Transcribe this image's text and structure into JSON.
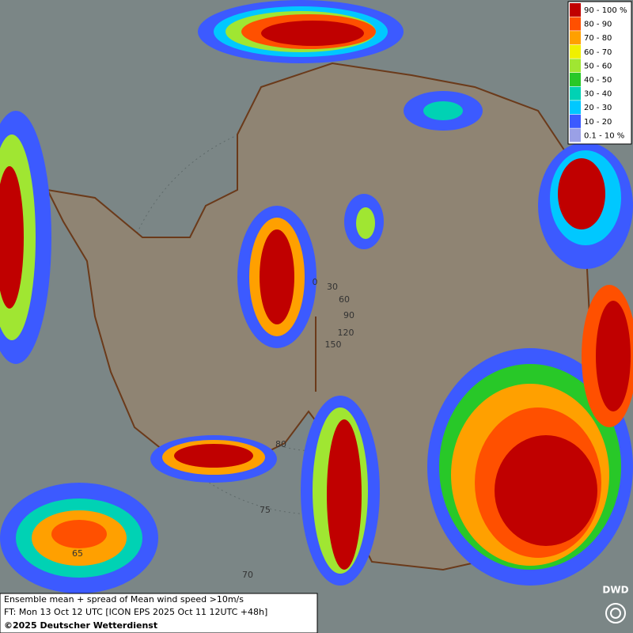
{
  "legend": [
    {
      "label": "90 - 100 %",
      "color": "#c00000"
    },
    {
      "label": "80 - 90",
      "color": "#ff5000"
    },
    {
      "label": "70 - 80",
      "color": "#ffa000"
    },
    {
      "label": "60 - 70",
      "color": "#f0f000"
    },
    {
      "label": "50 - 60",
      "color": "#a0e632"
    },
    {
      "label": "40 - 50",
      "color": "#28c828"
    },
    {
      "label": "30 - 40",
      "color": "#00d2b4"
    },
    {
      "label": "20 - 30",
      "color": "#00c8ff"
    },
    {
      "label": "10 - 20",
      "color": "#3c5aff"
    },
    {
      "label": "0.1 - 10 %",
      "color": "#9aa0e6"
    }
  ],
  "map_labels": [
    "0",
    "30",
    "60",
    "90",
    "120",
    "150",
    "80",
    "75",
    "70",
    "65"
  ],
  "footer": {
    "line1": "Ensemble mean + spread of Mean wind speed >10m/s",
    "line2": "FT: Mon 13 Oct 12 UTC [ICON EPS 2025 Oct 11 12UTC +48h]",
    "line3": "©2025 Deutscher Wetterdienst"
  },
  "logo": "DWD"
}
